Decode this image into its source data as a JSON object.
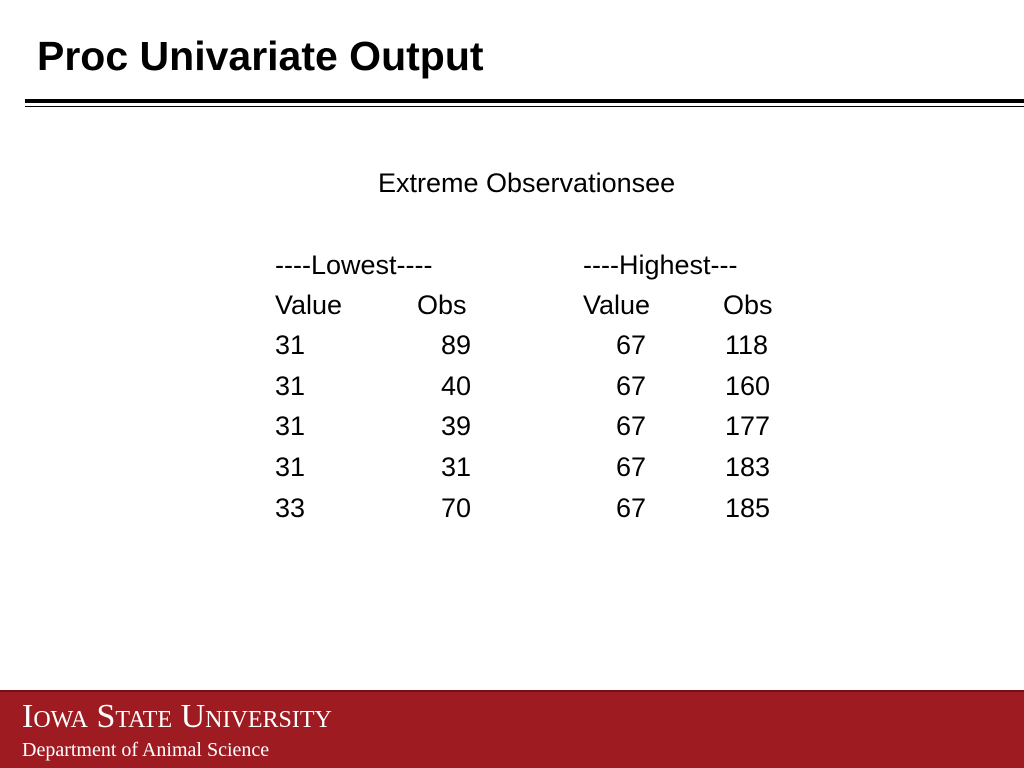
{
  "title": "Proc Univariate Output",
  "table": {
    "caption": "Extreme Observationsee",
    "groups": [
      "----Lowest----",
      "----Highest---"
    ],
    "columns": [
      "Value",
      "Obs",
      "Value",
      "Obs"
    ],
    "rows": [
      [
        31,
        89,
        67,
        118
      ],
      [
        31,
        40,
        67,
        160
      ],
      [
        31,
        39,
        67,
        177
      ],
      [
        31,
        31,
        67,
        183
      ],
      [
        33,
        70,
        67,
        185
      ]
    ]
  },
  "footer": {
    "university": "Iowa State University",
    "department": "Department of Animal Science"
  }
}
